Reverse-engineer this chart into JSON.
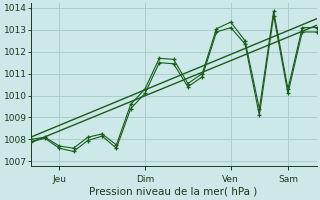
{
  "xlabel": "Pression niveau de la mer( hPa )",
  "ylim": [
    1006.8,
    1014.2
  ],
  "yticks": [
    1007,
    1008,
    1009,
    1010,
    1011,
    1012,
    1013,
    1014
  ],
  "background_color": "#cce8e8",
  "grid_color": "#aacfcf",
  "line_color": "#1a5c1a",
  "tick_label_color": "#1a3a1a",
  "xlabel_color": "#1a3a1a",
  "day_labels": [
    "Jeu",
    "Dim",
    "Ven",
    "Sam"
  ],
  "day_positions": [
    1.0,
    4.0,
    7.0,
    9.0
  ],
  "xlim": [
    0,
    10.0
  ],
  "trend_x": [
    0.0,
    10.0
  ],
  "trend_y": [
    1007.85,
    1013.2
  ],
  "trend2_x": [
    0.0,
    10.0
  ],
  "trend2_y": [
    1008.1,
    1013.5
  ],
  "line1_x": [
    0.0,
    0.5,
    1.0,
    1.5,
    2.0,
    2.5,
    3.0,
    3.5,
    4.0,
    4.5,
    5.0,
    5.5,
    6.0,
    6.5,
    7.0,
    7.5,
    8.0,
    8.5,
    9.0,
    9.5,
    10.0
  ],
  "line1_y": [
    1008.0,
    1008.1,
    1007.7,
    1007.6,
    1008.1,
    1008.25,
    1007.75,
    1009.6,
    1010.3,
    1011.7,
    1011.65,
    1010.55,
    1011.0,
    1013.05,
    1013.35,
    1012.5,
    1009.4,
    1013.85,
    1010.3,
    1013.1,
    1013.1
  ],
  "line2_x": [
    0.0,
    0.5,
    1.0,
    1.5,
    2.0,
    2.5,
    3.0,
    3.5,
    4.0,
    4.5,
    5.0,
    5.5,
    6.0,
    6.5,
    7.0,
    7.5,
    8.0,
    8.5,
    9.0,
    9.5,
    10.0
  ],
  "line2_y": [
    1007.9,
    1008.05,
    1007.6,
    1007.45,
    1007.95,
    1008.15,
    1007.6,
    1009.4,
    1010.1,
    1011.5,
    1011.45,
    1010.4,
    1010.85,
    1012.9,
    1013.1,
    1012.35,
    1009.1,
    1013.65,
    1010.1,
    1012.9,
    1012.9
  ]
}
